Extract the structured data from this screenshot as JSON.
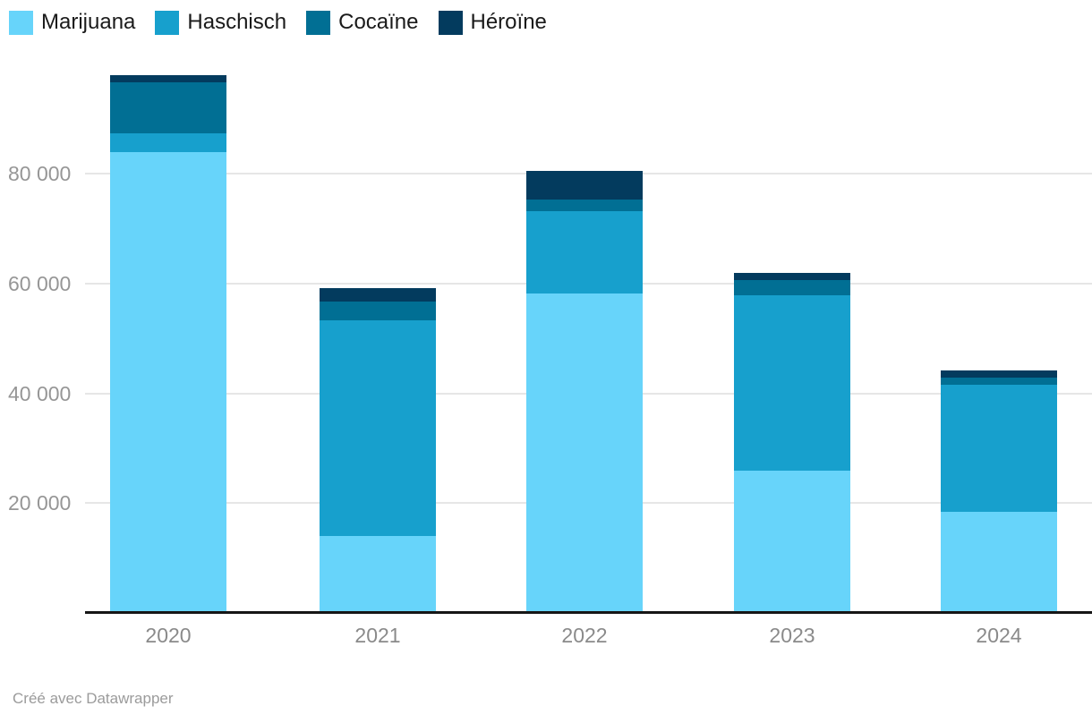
{
  "chart_data": {
    "type": "bar",
    "stacked": true,
    "title": "",
    "categories": [
      "2020",
      "2021",
      "2022",
      "2023",
      "2024"
    ],
    "series": [
      {
        "name": "Marijuana",
        "color": "#67d4fa",
        "values": [
          84000,
          14000,
          58200,
          26000,
          18500
        ]
      },
      {
        "name": "Haschisch",
        "color": "#17a0cd",
        "values": [
          3300,
          39300,
          15000,
          31900,
          23100
        ]
      },
      {
        "name": "Cocaïne",
        "color": "#016f94",
        "values": [
          9300,
          3400,
          2100,
          2800,
          1300
        ]
      },
      {
        "name": "Héroïne",
        "color": "#033b5e",
        "values": [
          1300,
          2500,
          5300,
          1300,
          1300
        ]
      }
    ],
    "totals": [
      97900,
      59200,
      80600,
      62000,
      44200
    ],
    "ylim": [
      0,
      100000
    ],
    "yticks": [
      {
        "value": 20000,
        "label": "20 000"
      },
      {
        "value": 40000,
        "label": "40 000"
      },
      {
        "value": 60000,
        "label": "60 000"
      },
      {
        "value": 80000,
        "label": "80 000"
      }
    ],
    "grid": true,
    "legend_position": "top-left",
    "xlabel": "",
    "ylabel": ""
  },
  "colors": {
    "background": "#ffffff",
    "gridline": "#e6e6e6",
    "axis_line": "#161616",
    "x_tick_text": "#8a8a8a",
    "y_tick_text": "#969696",
    "legend_text": "#1a1a1a",
    "credit_text": "#9b9b9b"
  },
  "footer": {
    "credit": "Créé avec Datawrapper"
  }
}
